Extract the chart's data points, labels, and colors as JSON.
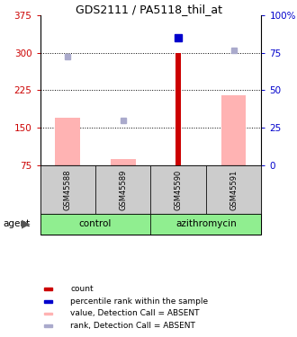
{
  "title": "GDS2111 / PA5118_thil_at",
  "samples": [
    "GSM45588",
    "GSM45589",
    "GSM45590",
    "GSM45591"
  ],
  "left_ylim": [
    75,
    375
  ],
  "right_ylim": [
    0,
    100
  ],
  "left_yticks": [
    75,
    150,
    225,
    300,
    375
  ],
  "right_yticks": [
    0,
    25,
    50,
    75,
    100
  ],
  "right_yticklabels": [
    "0",
    "25",
    "50",
    "75",
    "100%"
  ],
  "left_tick_color": "#cc0000",
  "right_tick_color": "#0000cc",
  "absent_value_bars": [
    170,
    88,
    0,
    215
  ],
  "absent_rank_squares": [
    292,
    165,
    0,
    305
  ],
  "count_bars": [
    0,
    0,
    300,
    0
  ],
  "percentile_squares": [
    0,
    0,
    330,
    0
  ],
  "has_count": [
    false,
    false,
    true,
    false
  ],
  "has_percentile": [
    false,
    false,
    true,
    false
  ],
  "has_absent_value": [
    true,
    true,
    false,
    true
  ],
  "has_absent_rank": [
    true,
    true,
    false,
    true
  ],
  "has_absent_rank_gsm45591": true,
  "absent_rank_gsm45591": 305,
  "count_color": "#cc0000",
  "percentile_color": "#0000cc",
  "absent_value_color": "#ffb3b3",
  "absent_rank_color": "#aaaacc",
  "bar_width": 0.45,
  "count_bar_width": 0.1,
  "control_color": "#90EE90",
  "group_label_fontsize": 7.5,
  "sample_label_fontsize": 6.0,
  "title_fontsize": 9.0,
  "legend_fontsize": 6.5,
  "axis_tick_fontsize": 7.5
}
